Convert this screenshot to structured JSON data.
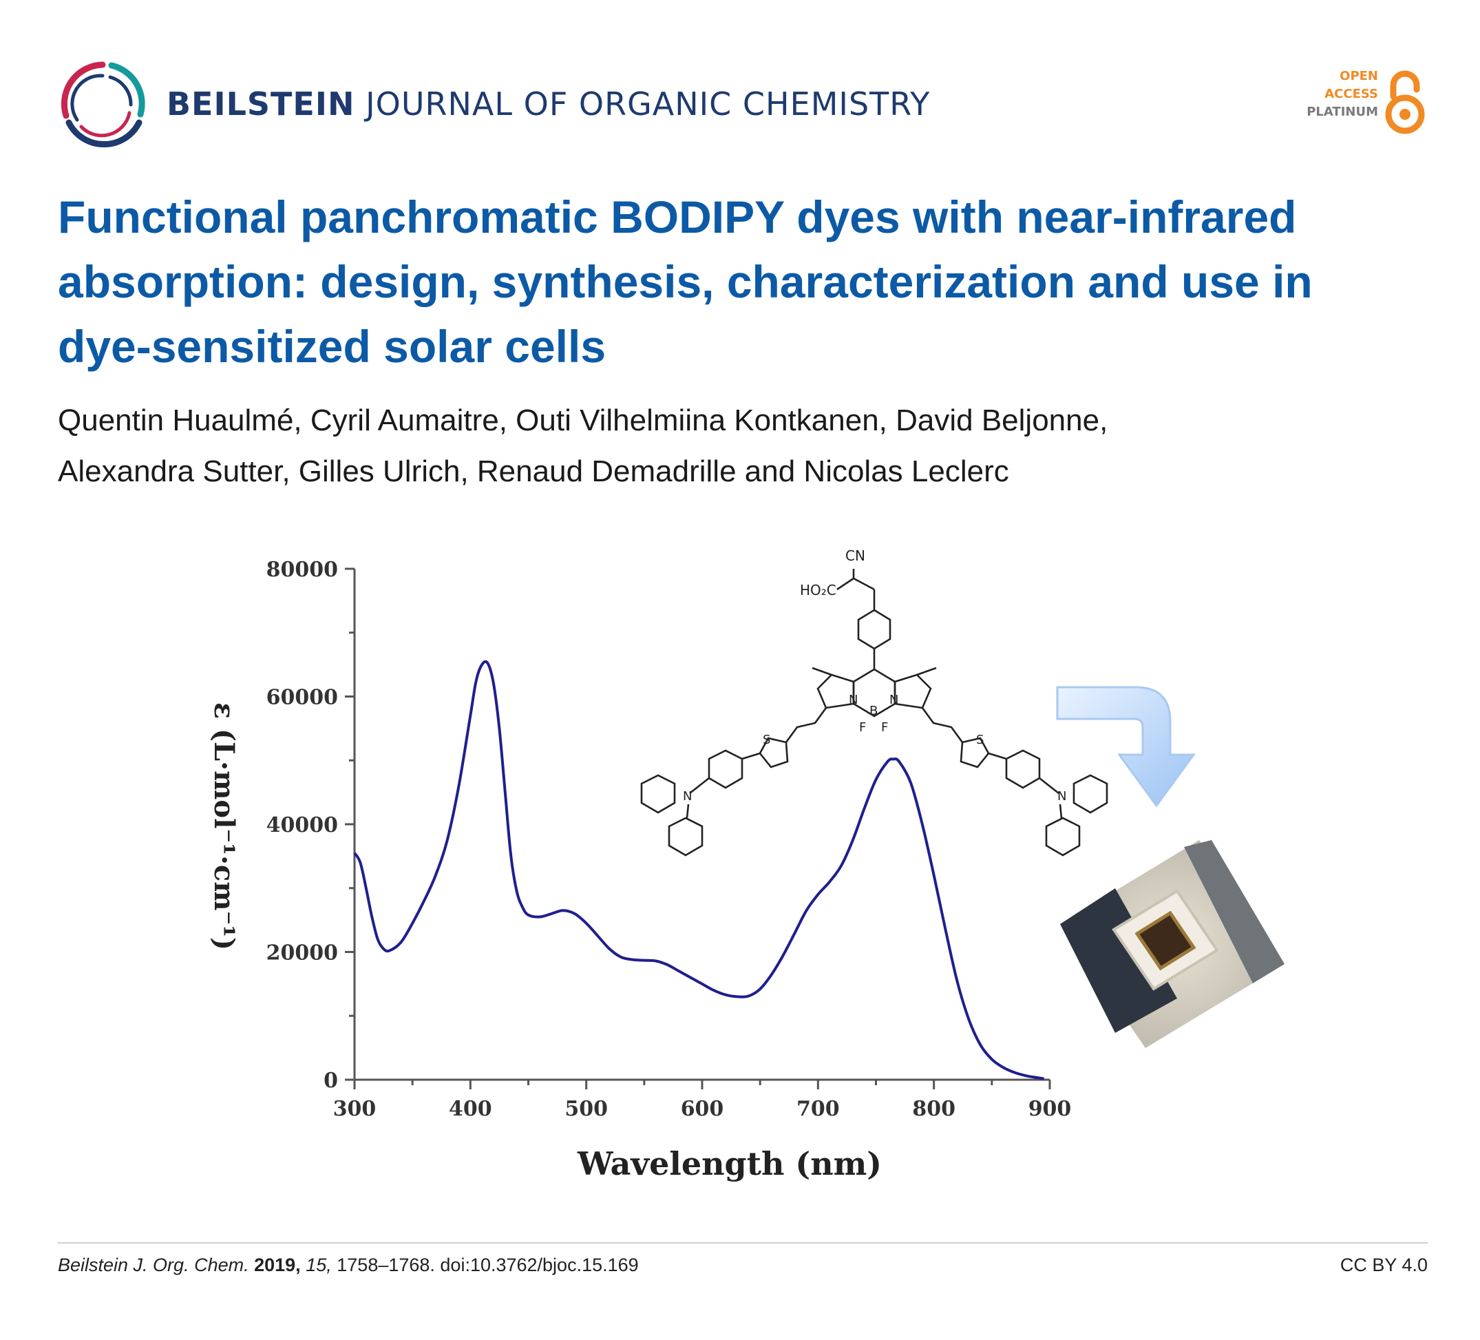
{
  "journal": {
    "name_bold": "BEILSTEIN",
    "name_rest": "JOURNAL OF ORGANIC CHEMISTRY"
  },
  "open_access": {
    "line1": "OPEN",
    "line2": "ACCESS",
    "line3": "PLATINUM"
  },
  "article": {
    "title": "Functional panchromatic BODIPY dyes with near-infrared absorption: design, synthesis, characterization and use in dye-sensitized solar cells",
    "authors_line1": "Quentin Huaulmé, Cyril Aumaitre, Outi Vilhelmiina Kontkanen, David Beljonne,",
    "authors_line2": "Alexandra Sutter, Gilles Ulrich, Renaud Demadrille and Nicolas Leclerc"
  },
  "molecule_labels": {
    "cn": "CN",
    "ho2c": "HO₂C",
    "b": "B",
    "n": "N",
    "f": "F",
    "s": "S"
  },
  "chart_data": {
    "type": "line",
    "xlabel": "Wavelength (nm)",
    "ylabel": "ε (L·mol⁻¹·cm⁻¹)",
    "xlim": [
      300,
      900
    ],
    "ylim": [
      0,
      80000
    ],
    "x_ticks": [
      "300",
      "400",
      "500",
      "600",
      "700",
      "800",
      "900"
    ],
    "y_ticks": [
      "0",
      "20000",
      "40000",
      "60000",
      "80000"
    ],
    "series": [
      {
        "color": "#1f1f8f",
        "points": [
          [
            300,
            35500
          ],
          [
            305,
            34000
          ],
          [
            310,
            30000
          ],
          [
            315,
            25500
          ],
          [
            320,
            22000
          ],
          [
            325,
            20500
          ],
          [
            330,
            20200
          ],
          [
            340,
            21500
          ],
          [
            350,
            24500
          ],
          [
            360,
            28000
          ],
          [
            370,
            32000
          ],
          [
            380,
            37500
          ],
          [
            390,
            46000
          ],
          [
            400,
            57000
          ],
          [
            405,
            62500
          ],
          [
            410,
            65000
          ],
          [
            415,
            65200
          ],
          [
            420,
            62000
          ],
          [
            425,
            55000
          ],
          [
            430,
            45000
          ],
          [
            435,
            35000
          ],
          [
            440,
            29500
          ],
          [
            445,
            27000
          ],
          [
            450,
            25800
          ],
          [
            460,
            25500
          ],
          [
            470,
            26000
          ],
          [
            480,
            26500
          ],
          [
            490,
            26000
          ],
          [
            500,
            24500
          ],
          [
            510,
            22500
          ],
          [
            520,
            20500
          ],
          [
            530,
            19200
          ],
          [
            540,
            18800
          ],
          [
            550,
            18700
          ],
          [
            560,
            18600
          ],
          [
            570,
            18000
          ],
          [
            580,
            17000
          ],
          [
            590,
            16000
          ],
          [
            600,
            15000
          ],
          [
            610,
            14000
          ],
          [
            620,
            13300
          ],
          [
            630,
            13000
          ],
          [
            640,
            13100
          ],
          [
            650,
            14200
          ],
          [
            660,
            16500
          ],
          [
            670,
            19500
          ],
          [
            680,
            23000
          ],
          [
            690,
            26500
          ],
          [
            700,
            29000
          ],
          [
            710,
            31000
          ],
          [
            720,
            33500
          ],
          [
            730,
            37500
          ],
          [
            740,
            42500
          ],
          [
            750,
            47000
          ],
          [
            760,
            49800
          ],
          [
            765,
            50200
          ],
          [
            770,
            49800
          ],
          [
            780,
            46500
          ],
          [
            790,
            40000
          ],
          [
            800,
            32000
          ],
          [
            810,
            23500
          ],
          [
            820,
            15500
          ],
          [
            830,
            9500
          ],
          [
            840,
            5500
          ],
          [
            850,
            3200
          ],
          [
            860,
            1900
          ],
          [
            870,
            1100
          ],
          [
            880,
            600
          ],
          [
            890,
            300
          ],
          [
            895,
            150
          ]
        ]
      }
    ]
  },
  "footer": {
    "journal_abbr": "Beilstein J. Org. Chem.",
    "year": "2019,",
    "volume": "15,",
    "pages_doi": "1758–1768. doi:10.3762/bjoc.15.169",
    "license": "CC BY 4.0"
  },
  "colors": {
    "title": "#0c5aa6",
    "journal": "#1e3a6e",
    "oa": "#f08a24",
    "curve": "#1f1f8f"
  }
}
